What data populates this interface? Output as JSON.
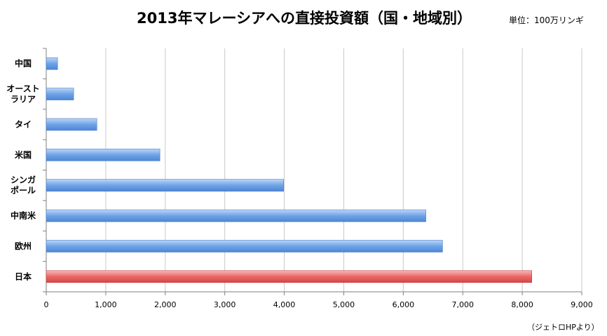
{
  "title": "2013年マレーシアへの直接投資額（国・地域別）",
  "unit": "単位：100万リンギ",
  "source": "（ジェトロHPより）",
  "colors": {
    "default_bar": "#6fa3e8",
    "highlight_bar": "#ec6666",
    "gridline": "#c8c8c8"
  },
  "chart_data": {
    "type": "bar",
    "orientation": "horizontal",
    "categories": [
      [
        "中国"
      ],
      [
        "オースト",
        "ラリア"
      ],
      [
        "タイ"
      ],
      [
        "米国"
      ],
      [
        "シンガ",
        "ポール"
      ],
      [
        "中南米"
      ],
      [
        "欧州"
      ],
      [
        "日本"
      ]
    ],
    "values": [
      190,
      460,
      850,
      1910,
      3990,
      6380,
      6660,
      8160
    ],
    "highlight_index": 7,
    "xlim": [
      0,
      9000
    ],
    "xticks": [
      0,
      1000,
      2000,
      3000,
      4000,
      5000,
      6000,
      7000,
      8000,
      9000
    ],
    "xtick_labels": [
      "0",
      "1,000",
      "2,000",
      "3,000",
      "4,000",
      "5,000",
      "6,000",
      "7,000",
      "8,000",
      "9,000"
    ],
    "xlabel": "",
    "ylabel": "",
    "grid": true,
    "legend": "none"
  }
}
